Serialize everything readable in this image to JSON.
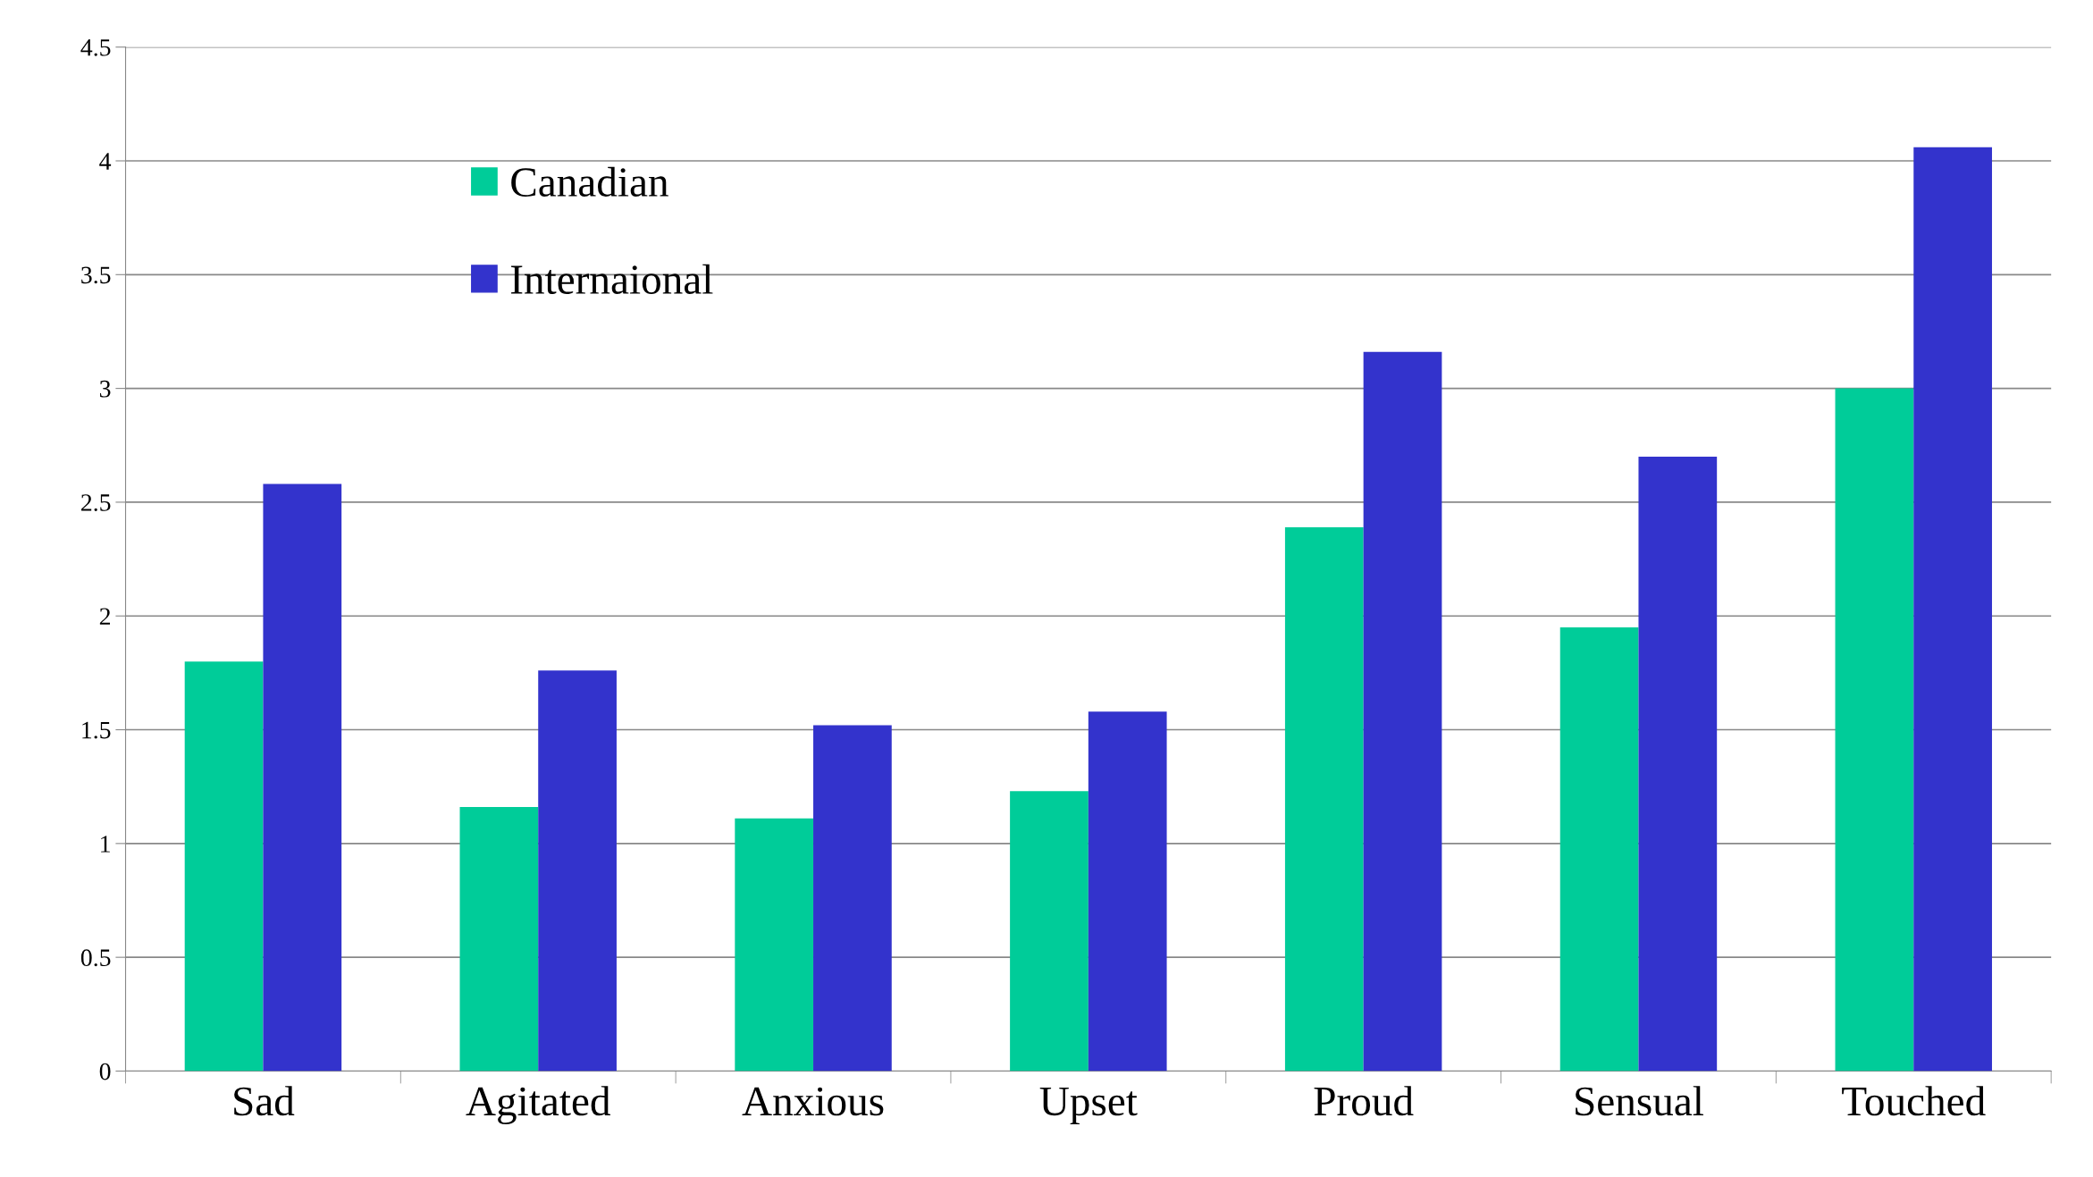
{
  "chart_data": {
    "type": "bar",
    "categories": [
      "Sad",
      "Agitated",
      "Anxious",
      "Upset",
      "Proud",
      "Sensual",
      "Touched"
    ],
    "series": [
      {
        "name": "Canadian",
        "color": "#00cc99",
        "values": [
          1.8,
          1.16,
          1.11,
          1.23,
          2.39,
          1.95,
          3.0
        ]
      },
      {
        "name": "Internaional",
        "color": "#3333cc",
        "values": [
          2.58,
          1.76,
          1.52,
          1.58,
          3.16,
          2.7,
          4.06
        ]
      }
    ],
    "ylim": [
      0,
      4.5
    ],
    "yticks": [
      0,
      0.5,
      1,
      1.5,
      2,
      2.5,
      3,
      3.5,
      4,
      4.5
    ],
    "grid": "y",
    "legend": "top left"
  }
}
